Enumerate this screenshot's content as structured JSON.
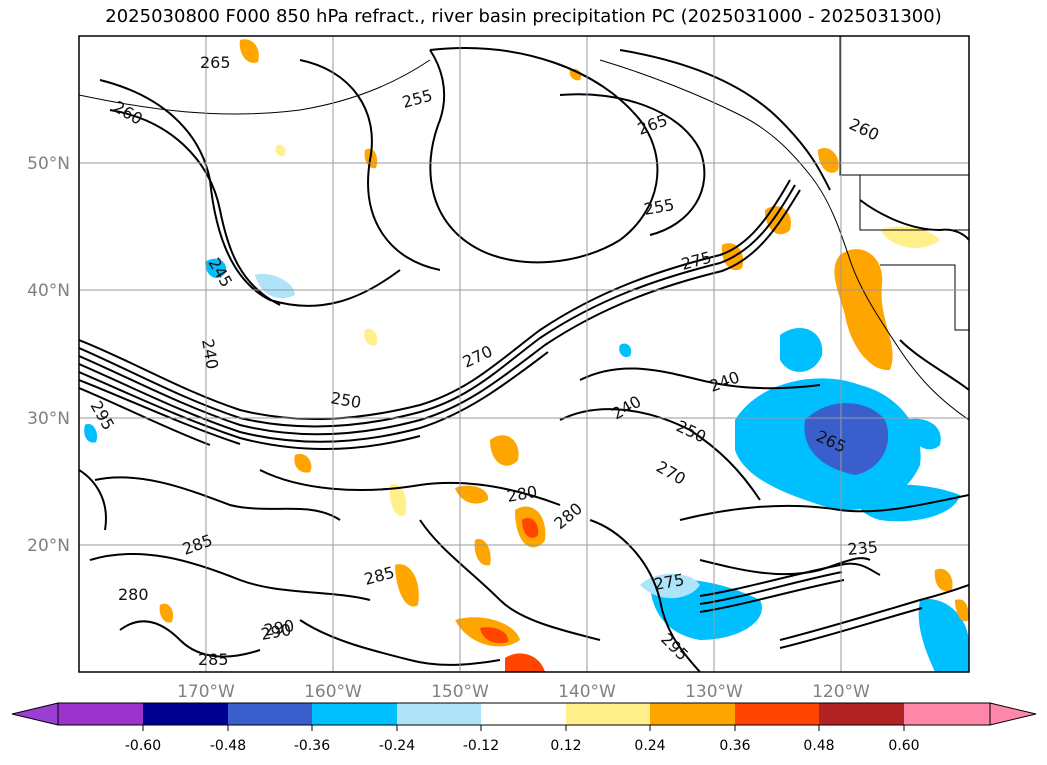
{
  "title": "2025030800 F000 850 hPa refract., river basin precipitation PC (2025031000 - 2025031300)",
  "map": {
    "lat_labels": [
      "50°N",
      "40°N",
      "30°N",
      "20°N"
    ],
    "lon_labels": [
      "170°W",
      "160°W",
      "150°W",
      "140°W",
      "130°W",
      "120°W"
    ],
    "contour_labels": [
      "265",
      "260",
      "255",
      "250",
      "245",
      "240",
      "270",
      "275",
      "280",
      "285",
      "290",
      "295",
      "260",
      "265",
      "255",
      "275",
      "280",
      "285",
      "270",
      "240",
      "250",
      "265",
      "280",
      "235",
      "240",
      "295",
      "290",
      "285"
    ]
  },
  "colorbar": {
    "ticks": [
      "-0.60",
      "-0.48",
      "-0.36",
      "-0.24",
      "-0.12",
      "0.12",
      "0.24",
      "0.36",
      "0.48",
      "0.60"
    ],
    "colors": {
      "under": "#9b3fd3",
      "bins": [
        "#9933cc",
        "#000090",
        "#3a5fcd",
        "#00bfff",
        "#aee3f9",
        "#ffffff",
        "#fff08c",
        "#ffa500",
        "#ff4500",
        "#b22222",
        "#ff88aa"
      ]
    }
  }
}
